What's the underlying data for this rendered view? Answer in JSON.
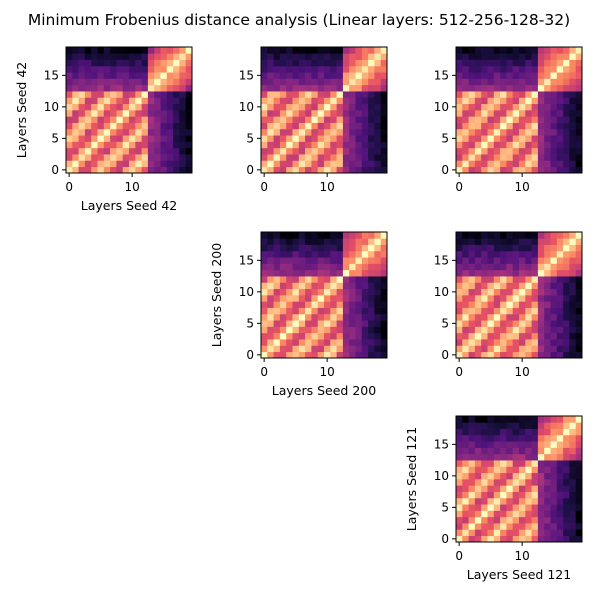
{
  "chart_data": {
    "type": "heatmap",
    "title": "Minimum Frobenius distance analysis (Linear layers: 512-256-128-32)",
    "colormap": "magma",
    "grid": false,
    "axis_range": [
      0,
      19
    ],
    "x_ticks": [
      0,
      10
    ],
    "y_ticks": [
      0,
      5,
      10,
      15
    ],
    "subplots": [
      {
        "ylabel": "Layers Seed 42",
        "xlabel": "Layers Seed 42"
      },
      {
        "ylabel": "",
        "xlabel": ""
      },
      {
        "ylabel": "",
        "xlabel": ""
      },
      {
        "ylabel": "Layers Seed 200",
        "xlabel": "Layers Seed 200"
      },
      {
        "ylabel": "",
        "xlabel": ""
      },
      {
        "ylabel": "Layers Seed 121",
        "xlabel": "Layers Seed 121"
      }
    ]
  }
}
